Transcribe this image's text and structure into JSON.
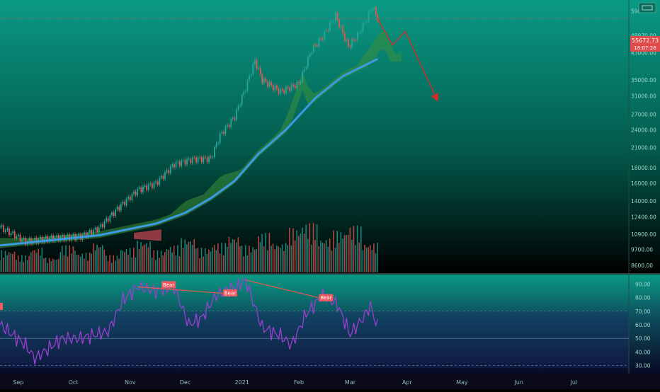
{
  "price_pane": {
    "y_ticks": [
      "59000.00",
      "48970.00",
      "43000.00",
      "35000.00",
      "31000.00",
      "27000.00",
      "24000.00",
      "21000.00",
      "18000.00",
      "16000.00",
      "14000.00",
      "12400.00",
      "10900.00",
      "9700.00",
      "8600.00"
    ],
    "last_price": "55672.73",
    "countdown": "18:07:26"
  },
  "rsi_pane": {
    "y_ticks": [
      "90.00",
      "80.00",
      "70.00",
      "60.00",
      "50.00",
      "40.00",
      "30.00"
    ],
    "overbought": 70,
    "oversold": 30,
    "divergence_label": "Bear"
  },
  "x_axis": {
    "labels": [
      "Sep",
      "Oct",
      "Nov",
      "Dec",
      "2021",
      "Feb",
      "Mar",
      "Apr",
      "May",
      "Jun",
      "Jul"
    ]
  },
  "colors": {
    "bg_top": "#0a9a85",
    "bg_bottom": "#000000",
    "up_candle": "#26a69a",
    "down_candle": "#ef5350",
    "ma_line": "#3b9ae1",
    "cloud_bull": "#3a8f3a",
    "cloud_bear": "#a8404a",
    "rsi_line": "#9a3fd0",
    "projection": "#d8282c",
    "bear_label": "#f05a60"
  },
  "chart_data": [
    {
      "type": "line",
      "pane": "price",
      "x_domain": [
        "2020-08-22",
        "2021-07-31"
      ],
      "y_scale": "log",
      "ylim": [
        8200,
        62000
      ],
      "price_path": [
        [
          "2020-08-22",
          11500
        ],
        [
          "2020-09-05",
          10300
        ],
        [
          "2020-09-20",
          10600
        ],
        [
          "2020-10-05",
          10700
        ],
        [
          "2020-10-15",
          11400
        ],
        [
          "2020-10-25",
          13200
        ],
        [
          "2020-11-05",
          15200
        ],
        [
          "2020-11-15",
          16000
        ],
        [
          "2020-11-25",
          18500
        ],
        [
          "2020-12-05",
          19200
        ],
        [
          "2020-12-15",
          19300
        ],
        [
          "2020-12-20",
          23000
        ],
        [
          "2020-12-28",
          26500
        ],
        [
          "2021-01-03",
          33000
        ],
        [
          "2021-01-08",
          40500
        ],
        [
          "2021-01-12",
          35000
        ],
        [
          "2021-01-22",
          32000
        ],
        [
          "2021-02-01",
          34000
        ],
        [
          "2021-02-08",
          44000
        ],
        [
          "2021-02-14",
          48500
        ],
        [
          "2021-02-21",
          57000
        ],
        [
          "2021-02-28",
          45000
        ],
        [
          "2021-03-05",
          49000
        ],
        [
          "2021-03-10",
          55500
        ],
        [
          "2021-03-13",
          61000
        ],
        [
          "2021-03-16",
          55672
        ]
      ],
      "moving_average": [
        [
          "2020-08-22",
          10000
        ],
        [
          "2020-09-15",
          10350
        ],
        [
          "2020-10-15",
          10800
        ],
        [
          "2020-11-15",
          11800
        ],
        [
          "2020-12-01",
          12800
        ],
        [
          "2020-12-15",
          14300
        ],
        [
          "2020-12-28",
          16300
        ],
        [
          "2021-01-10",
          20000
        ],
        [
          "2021-01-25",
          24000
        ],
        [
          "2021-02-10",
          30500
        ],
        [
          "2021-02-25",
          36000
        ],
        [
          "2021-03-16",
          41000
        ]
      ],
      "projection": [
        [
          "2021-03-16",
          55672
        ],
        [
          "2021-03-24",
          45500
        ],
        [
          "2021-03-31",
          50500
        ],
        [
          "2021-04-17",
          30500
        ]
      ],
      "volume_relative": [
        0.45,
        0.35,
        0.5,
        0.3,
        0.55,
        0.4,
        0.6,
        0.35,
        0.5,
        0.65,
        0.45,
        0.55,
        0.7,
        0.5,
        0.6,
        0.75,
        0.55,
        0.8,
        0.6,
        0.9,
        1.0,
        0.7,
        0.85,
        0.95,
        0.6
      ]
    },
    {
      "type": "line",
      "pane": "rsi",
      "ylim": [
        25,
        95
      ],
      "rsi": [
        [
          "2020-08-22",
          60
        ],
        [
          "2020-09-05",
          45
        ],
        [
          "2020-09-10",
          35
        ],
        [
          "2020-09-25",
          50
        ],
        [
          "2020-10-05",
          50
        ],
        [
          "2020-10-20",
          55
        ],
        [
          "2020-10-28",
          78
        ],
        [
          "2020-11-05",
          88
        ],
        [
          "2020-11-15",
          85
        ],
        [
          "2020-11-25",
          88
        ],
        [
          "2020-12-03",
          60
        ],
        [
          "2020-12-10",
          65
        ],
        [
          "2020-12-18",
          82
        ],
        [
          "2020-12-28",
          88
        ],
        [
          "2021-01-03",
          93
        ],
        [
          "2021-01-12",
          58
        ],
        [
          "2021-01-22",
          52
        ],
        [
          "2021-01-28",
          45
        ],
        [
          "2021-02-05",
          68
        ],
        [
          "2021-02-14",
          82
        ],
        [
          "2021-02-22",
          75
        ],
        [
          "2021-03-01",
          53
        ],
        [
          "2021-03-08",
          65
        ],
        [
          "2021-03-12",
          74
        ],
        [
          "2021-03-16",
          58
        ]
      ],
      "divergence_lines": [
        [
          [
            "2020-11-05",
            88
          ],
          [
            "2020-12-24",
            83
          ]
        ],
        [
          [
            "2021-01-03",
            93
          ],
          [
            "2021-02-12",
            80
          ]
        ]
      ]
    }
  ]
}
